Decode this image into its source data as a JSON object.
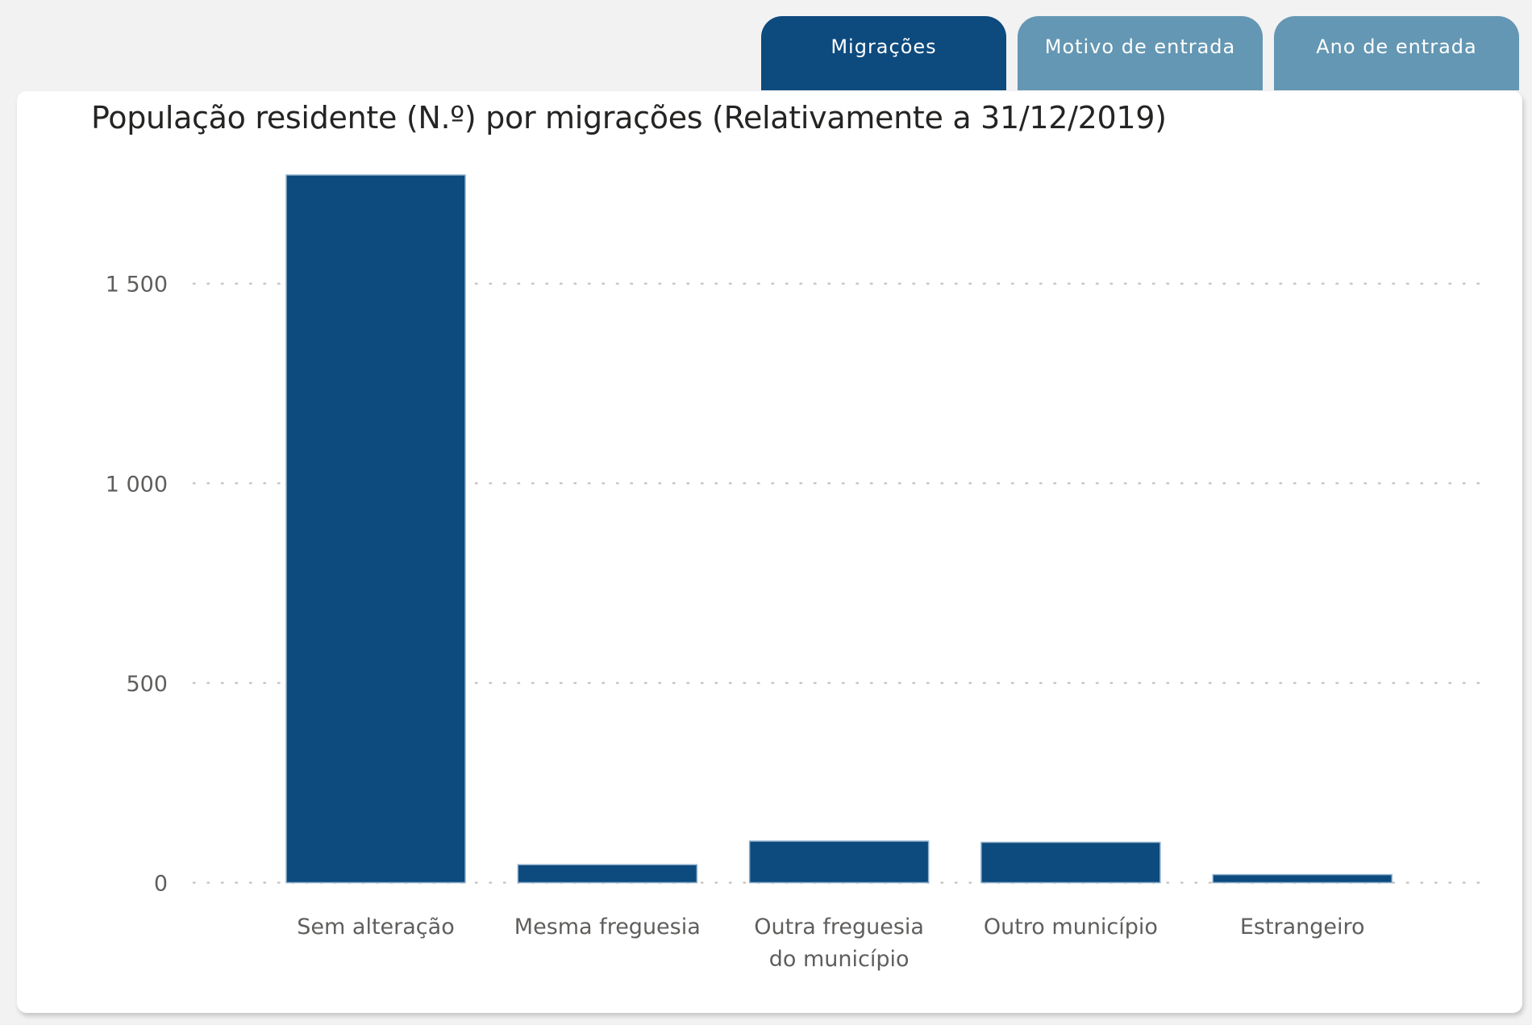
{
  "tabs": [
    {
      "label": "Migrações",
      "active": true
    },
    {
      "label": "Motivo de entrada",
      "active": false
    },
    {
      "label": "Ano de entrada",
      "active": false
    }
  ],
  "colors": {
    "bar": "#0d4a7e",
    "tab_active": "#0d4a7e",
    "tab_inactive": "#6497b3",
    "grid": "#c8c6c4",
    "axis_text": "#605e5c"
  },
  "chart_data": {
    "type": "bar",
    "title": "População residente (N.º) por migrações (Relativamente a 31/12/2019)",
    "categories": [
      [
        "Sem alteração"
      ],
      [
        "Mesma freguesia"
      ],
      [
        "Outra freguesia",
        "do município"
      ],
      [
        "Outro município"
      ],
      [
        "Estrangeiro"
      ]
    ],
    "values": [
      1772,
      45,
      104,
      101,
      20
    ],
    "xlabel": "",
    "ylabel": "",
    "ylim": [
      0,
      1800
    ],
    "yticks": [
      0,
      500,
      1000,
      1500
    ],
    "ytick_labels": [
      "0",
      "500",
      "1 000",
      "1 500"
    ],
    "grid": "horizontal-dotted",
    "legend": "none"
  }
}
